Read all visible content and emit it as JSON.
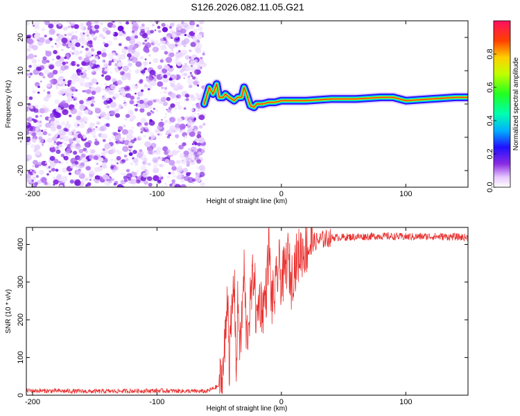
{
  "figure": {
    "title": "S126.2026.082.11.05.G21"
  },
  "chart_data": [
    {
      "type": "heatmap",
      "title": "",
      "xlabel": "Height of straight line (km)",
      "ylabel": "Frequency (Hz)",
      "xlim": [
        -205,
        150
      ],
      "ylim": [
        -25,
        25
      ],
      "xticks": [
        -200,
        -100,
        0,
        100
      ],
      "yticks": [
        -20,
        -10,
        0,
        10,
        20
      ],
      "colorbar": {
        "label": "Normalized spectral amplitude",
        "range": [
          0,
          1
        ],
        "ticks": [
          "0.0",
          "0.2",
          "0.4",
          "0.6",
          "0.8"
        ]
      },
      "noise_region_x": [
        -205,
        -62
      ],
      "ridge_frequency": {
        "x": [
          -62,
          -58,
          -55,
          -52,
          -50,
          -47,
          -45,
          -42,
          -40,
          -38,
          -35,
          -32,
          -30,
          -28,
          -25,
          -22,
          -20,
          -15,
          -10,
          -5,
          0,
          5,
          20,
          40,
          60,
          80,
          90,
          100,
          120,
          140,
          150
        ],
        "y": [
          0,
          5,
          3,
          6,
          2,
          2,
          3,
          2,
          1.5,
          1,
          2,
          2,
          5,
          3,
          -0.5,
          -1,
          0,
          0,
          0.5,
          0.5,
          1,
          1,
          1,
          1.5,
          1.5,
          2,
          2,
          1,
          1.5,
          2,
          2
        ]
      }
    },
    {
      "type": "line",
      "title": "",
      "xlabel": "Height of straight line (km)",
      "ylabel": "SNR (10 * v/v)",
      "xlim": [
        -205,
        150
      ],
      "ylim": [
        0,
        445
      ],
      "xticks": [
        -200,
        -100,
        0,
        100
      ],
      "yticks": [
        0,
        100,
        200,
        300,
        400
      ],
      "series": [
        {
          "name": "SNR",
          "color": "#e8302e",
          "x": [
            -205,
            -150,
            -100,
            -60,
            -50,
            -47,
            -45,
            -43,
            -42,
            -40,
            -38,
            -36,
            -35,
            -33,
            -30,
            -28,
            -25,
            -22,
            -20,
            -18,
            -15,
            -12,
            -10,
            -8,
            -5,
            -2,
            0,
            3,
            5,
            8,
            10,
            15,
            20,
            25,
            30,
            40,
            60,
            80,
            100,
            120,
            140,
            150
          ],
          "y": [
            12,
            10,
            12,
            10,
            25,
            60,
            150,
            300,
            80,
            200,
            310,
            60,
            260,
            120,
            330,
            150,
            240,
            340,
            180,
            260,
            230,
            280,
            400,
            250,
            270,
            350,
            300,
            330,
            370,
            300,
            340,
            380,
            390,
            405,
            410,
            418,
            420,
            422,
            420,
            421,
            420,
            418
          ]
        }
      ]
    }
  ]
}
